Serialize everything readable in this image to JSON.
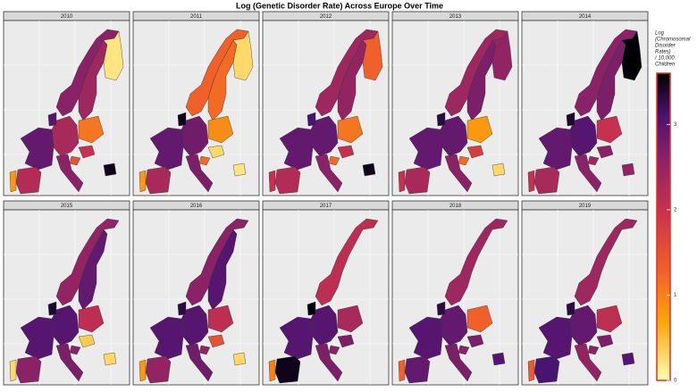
{
  "chart_data": {
    "type": "choropleth",
    "title": "Log (Genetic Disorder Rate) Across Europe Over Time",
    "legend_title": [
      "Log",
      "(Chromosomal",
      "Disorder",
      "Rates)",
      "/ 10,000",
      "Children"
    ],
    "colorlim": [
      0,
      3.6
    ],
    "colorticks": [
      0,
      1,
      2,
      3
    ],
    "facets": [
      {
        "label": "2010",
        "values": [
          2.6,
          2.4,
          0.2,
          1.1,
          2.3,
          3.0,
          2.9,
          2.2,
          0.8,
          2.6,
          1.5,
          2.0,
          3.5
        ]
      },
      {
        "label": "2011",
        "values": [
          1.3,
          1.2,
          0.3,
          0.9,
          2.8,
          3.5,
          2.9,
          2.3,
          0.8,
          2.7,
          1.2,
          0.3,
          0.2
        ]
      },
      {
        "label": "2012",
        "values": [
          2.4,
          2.5,
          1.3,
          1.1,
          2.9,
          3.1,
          2.9,
          2.2,
          2.0,
          2.6,
          1.2,
          2.0,
          3.5
        ]
      },
      {
        "label": "2013",
        "values": [
          2.4,
          2.7,
          2.5,
          0.8,
          2.9,
          3.3,
          2.9,
          2.3,
          2.0,
          2.6,
          1.2,
          1.8,
          0.3
        ]
      },
      {
        "label": "2014",
        "values": [
          2.6,
          2.7,
          3.6,
          2.0,
          3.0,
          3.4,
          2.9,
          2.3,
          2.0,
          2.6,
          2.4,
          2.6,
          2.5
        ]
      },
      {
        "label": "2015",
        "values": [
          2.5,
          2.9,
          null,
          2.1,
          3.0,
          3.4,
          3.0,
          2.6,
          0.3,
          2.7,
          2.6,
          0.4,
          0.3
        ]
      },
      {
        "label": "2016",
        "values": [
          2.6,
          3.0,
          null,
          2.1,
          3.0,
          3.3,
          3.0,
          2.5,
          0.8,
          2.8,
          2.5,
          1.5,
          0.3
        ]
      },
      {
        "label": "2017",
        "values": [
          2.1,
          null,
          null,
          2.3,
          3.0,
          3.6,
          3.0,
          3.5,
          1.0,
          2.7,
          2.6,
          2.7,
          null
        ]
      },
      {
        "label": "2018",
        "values": [
          2.4,
          null,
          null,
          1.3,
          2.9,
          3.3,
          3.0,
          2.9,
          1.3,
          2.7,
          2.6,
          2.7,
          3.0
        ]
      },
      {
        "label": "2019",
        "values": [
          2.4,
          null,
          null,
          2.1,
          2.9,
          3.3,
          3.0,
          3.1,
          1.4,
          2.5,
          2.6,
          2.7,
          3.0
        ]
      }
    ]
  }
}
